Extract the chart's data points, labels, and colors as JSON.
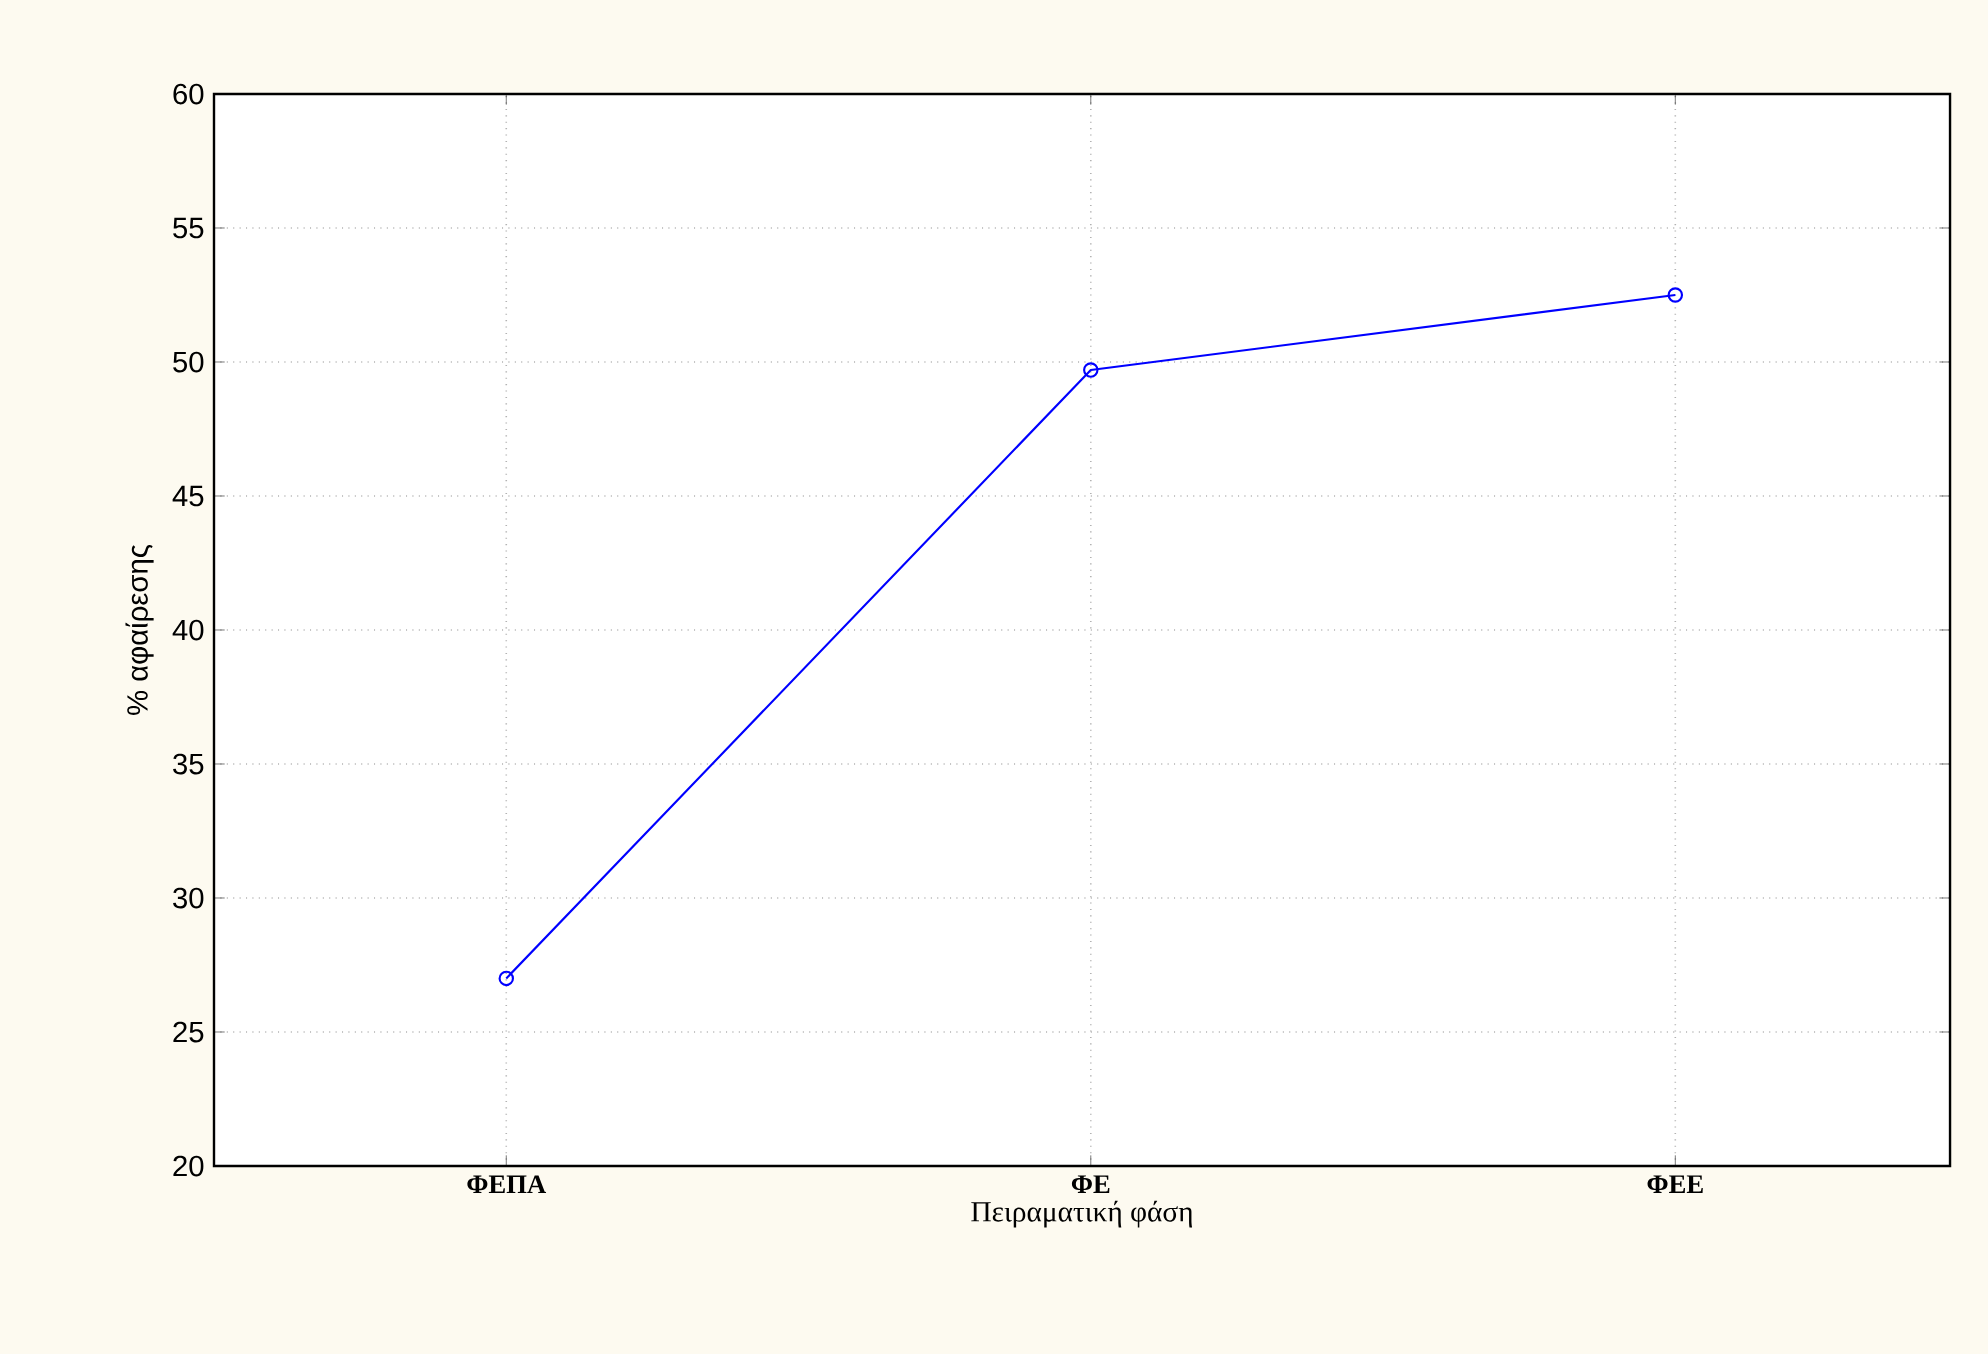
{
  "chart_data": {
    "type": "line",
    "xlabel": "Πειραματική φάση",
    "ylabel": "% αφαίρεσης",
    "categories": [
      "ΦΕΠΑ",
      "ΦΕ",
      "ΦΕΕ"
    ],
    "series": [
      {
        "color": "#0000ff",
        "values": [
          27,
          49.7,
          52.5
        ]
      }
    ],
    "ylim": [
      20,
      60
    ],
    "yticks": [
      20,
      25,
      30,
      35,
      40,
      45,
      50,
      55,
      60
    ],
    "grid": true,
    "marker": "circle",
    "line_style": "solid"
  }
}
